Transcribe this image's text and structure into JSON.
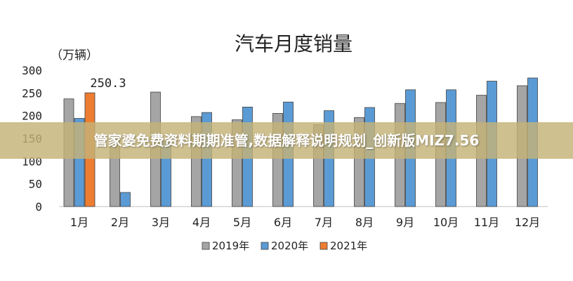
{
  "chart_data": {
    "type": "bar",
    "title": "汽车月度销量",
    "unit_label": "（万辆）",
    "categories": [
      "1月",
      "2月",
      "3月",
      "4月",
      "5月",
      "6月",
      "7月",
      "8月",
      "9月",
      "10月",
      "11月",
      "12月"
    ],
    "ylim": [
      0,
      300
    ],
    "yticks": [
      0,
      50,
      100,
      150,
      200,
      250,
      300
    ],
    "series": [
      {
        "name": "2019年",
        "color": "#a5a5a5",
        "values": [
          237,
          148,
          252,
          198,
          191,
          205,
          180,
          196,
          227,
          229,
          245,
          266
        ]
      },
      {
        "name": "2020年",
        "color": "#5b9bd5",
        "values": [
          194,
          31,
          143,
          207,
          219,
          230,
          211,
          218,
          257,
          257,
          276,
          283
        ]
      },
      {
        "name": "2021年",
        "color": "#ed7d31",
        "values": [
          250.3,
          null,
          null,
          null,
          null,
          null,
          null,
          null,
          null,
          null,
          null,
          null
        ]
      }
    ],
    "annotations": [
      {
        "series": 2,
        "index": 0,
        "text": "250.3"
      }
    ],
    "grid": false,
    "legend_position": "bottom"
  },
  "watermark": {
    "text": "管家婆免费资料期期准管,数据解释说明规划_创新版MIZ7.56"
  }
}
